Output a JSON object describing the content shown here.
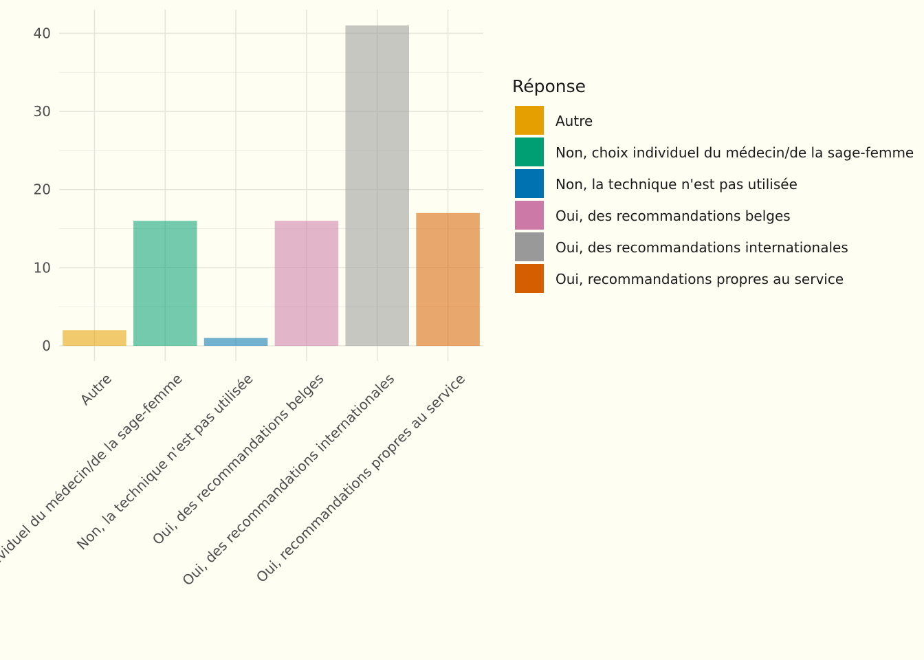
{
  "chart_data": {
    "type": "bar",
    "title": "",
    "xlabel": "",
    "ylabel": "",
    "categories": [
      "Autre",
      "Non, choix individuel du médecin/de la sage-femme",
      "Non, la technique n'est pas utilisée",
      "Oui, des recommandations belges",
      "Oui, des recommandations internationales",
      "Oui, recommandations propres au service"
    ],
    "values": [
      2,
      16,
      1,
      16,
      41,
      17
    ],
    "colors": [
      "#E69F00",
      "#009E73",
      "#0072B2",
      "#CC79A7",
      "#999999",
      "#D55E00"
    ],
    "ylim": [
      0,
      43
    ],
    "yticks": [
      0,
      10,
      20,
      30,
      40
    ],
    "grid": true,
    "legend": {
      "title": "Réponse",
      "placement": "right",
      "entries": [
        "Autre",
        "Non, choix individuel du médecin/de la sage-femme",
        "Non, la technique n'est pas utilisée",
        "Oui, des recommandations belges",
        "Oui, des recommandations internationales",
        "Oui, recommandations propres au service"
      ]
    }
  }
}
